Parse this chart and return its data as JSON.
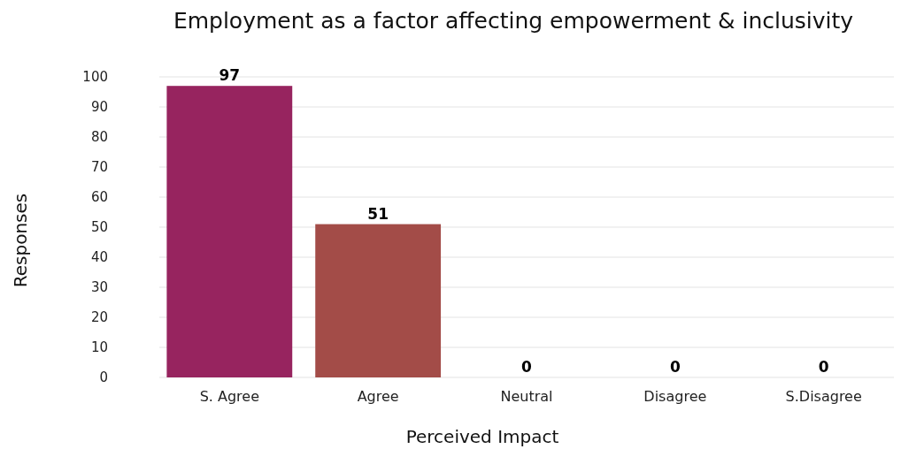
{
  "chart_data": {
    "type": "bar",
    "title": "Employment as a factor affecting empowerment & inclusivity",
    "xlabel": "Perceived Impact",
    "ylabel": "Responses",
    "categories": [
      "S. Agree",
      "Agree",
      "Neutral",
      "Disagree",
      "S.Disagree"
    ],
    "values": [
      97,
      51,
      0,
      0,
      0
    ],
    "colors": [
      "#97245f",
      "#a34c48",
      "#a34c48",
      "#a34c48",
      "#a34c48"
    ],
    "ylim": [
      0,
      100
    ],
    "yticks": [
      0,
      10,
      20,
      30,
      40,
      50,
      60,
      70,
      80,
      90,
      100
    ],
    "grid": "y",
    "data_labels": true
  }
}
